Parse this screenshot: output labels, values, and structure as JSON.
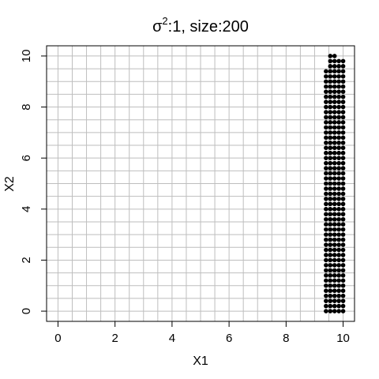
{
  "chart_data": {
    "type": "scatter",
    "title_prefix": "σ",
    "title_superscript": "2",
    "title_rest": ":1, size:200",
    "xlabel": "X1",
    "ylabel": "X2",
    "xlim": [
      -0.4,
      10.4
    ],
    "ylim": [
      -0.4,
      10.4
    ],
    "x_ticks": [
      0,
      2,
      4,
      6,
      8,
      10
    ],
    "y_ticks": [
      0,
      2,
      4,
      6,
      8,
      10
    ],
    "grid": true,
    "grid_step": 0.5,
    "point_color": "#000000",
    "grid_color": "#bebebe",
    "x_values": [
      9.4,
      9.55,
      9.7,
      9.85,
      10.0
    ],
    "y_step": 0.2,
    "columns": [
      {
        "x": 9.4,
        "ymin": 0,
        "ymax": 9.4
      },
      {
        "x": 9.55,
        "ymin": 0,
        "ymax": 10.0
      },
      {
        "x": 9.7,
        "ymin": 0,
        "ymax": 10.0
      },
      {
        "x": 9.85,
        "ymin": 0,
        "ymax": 9.8
      },
      {
        "x": 10.0,
        "ymin": 0,
        "ymax": 9.8
      }
    ]
  }
}
